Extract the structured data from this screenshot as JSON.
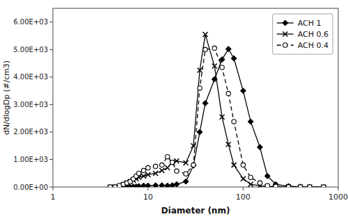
{
  "chart_data": {
    "type": "line",
    "xlabel": "Diameter (nm)",
    "ylabel": "dN/dlogDp (#/cm3)",
    "log": "x",
    "grid": false,
    "legend": "upper right",
    "xlim": [
      1,
      1000
    ],
    "xticks": [
      1,
      10,
      100,
      1000
    ],
    "ylim": [
      0,
      6500
    ],
    "yticks": [
      {
        "value": 0,
        "label": "0.00E+00"
      },
      {
        "value": 1000,
        "label": "1.00E+03"
      },
      {
        "value": 2000,
        "label": "2.00E+03"
      },
      {
        "value": 3000,
        "label": "3.00E+03"
      },
      {
        "value": 4000,
        "label": "4.00E+03"
      },
      {
        "value": 5000,
        "label": "5.00E+03"
      },
      {
        "value": 6000,
        "label": "6.00E+03"
      }
    ],
    "series": [
      {
        "name": "ACH 1",
        "color": "#000000",
        "marker": "diamond",
        "line_style": "solid",
        "x": [
          4.0,
          4.5,
          5.0,
          5.5,
          6.0,
          6.5,
          7.0,
          7.5,
          8.0,
          9.0,
          10.0,
          12.0,
          14.0,
          16.0,
          18.0,
          20.0,
          25.0,
          30.0,
          35.0,
          40.0,
          50.0,
          60.0,
          70.0,
          80.0,
          100.0,
          120.0,
          150.0,
          180.0,
          220.0,
          300.0,
          400.0,
          500.0,
          700.0
        ],
        "values": [
          0,
          0,
          0,
          0,
          0,
          0,
          10,
          20,
          30,
          50,
          50,
          60,
          60,
          50,
          60,
          100,
          200,
          780,
          2000,
          3050,
          3920,
          4640,
          5020,
          4680,
          3500,
          2380,
          1450,
          400,
          100,
          30,
          10,
          5,
          0
        ]
      },
      {
        "name": "ACH 0.6",
        "color": "#000000",
        "marker": "x",
        "line_style": "solid",
        "x": [
          4.0,
          4.5,
          5.0,
          5.5,
          6.0,
          6.5,
          7.0,
          7.5,
          8.0,
          9.0,
          10.0,
          12.0,
          14.0,
          16.0,
          18.0,
          20.0,
          25.0,
          30.0,
          35.0,
          40.0,
          50.0,
          60.0,
          70.0,
          80.0,
          100.0,
          120.0,
          150.0,
          180.0,
          220.0,
          300.0,
          400.0,
          500.0,
          700.0
        ],
        "values": [
          0,
          0,
          30,
          80,
          150,
          200,
          250,
          300,
          350,
          400,
          450,
          500,
          600,
          700,
          900,
          950,
          880,
          1500,
          4250,
          5550,
          4400,
          2550,
          1550,
          800,
          300,
          100,
          50,
          20,
          10,
          5,
          0,
          0,
          0
        ]
      },
      {
        "name": "ACH 0.4",
        "color": "#000000",
        "marker": "open-circle",
        "line_style": "dashed",
        "x": [
          4.0,
          4.5,
          5.0,
          5.5,
          6.0,
          6.5,
          7.0,
          7.5,
          8.0,
          9.0,
          10.0,
          12.0,
          14.0,
          16.0,
          18.0,
          20.0,
          25.0,
          30.0,
          35.0,
          40.0,
          50.0,
          60.0,
          70.0,
          80.0,
          100.0,
          120.0,
          150.0,
          180.0,
          220.0,
          300.0,
          400.0,
          500.0,
          700.0
        ],
        "values": [
          0,
          0,
          50,
          100,
          150,
          200,
          300,
          400,
          500,
          600,
          700,
          750,
          800,
          1100,
          900,
          580,
          480,
          800,
          3600,
          5000,
          5050,
          4350,
          3400,
          2380,
          800,
          350,
          150,
          50,
          20,
          5,
          0,
          0,
          0
        ]
      }
    ]
  }
}
